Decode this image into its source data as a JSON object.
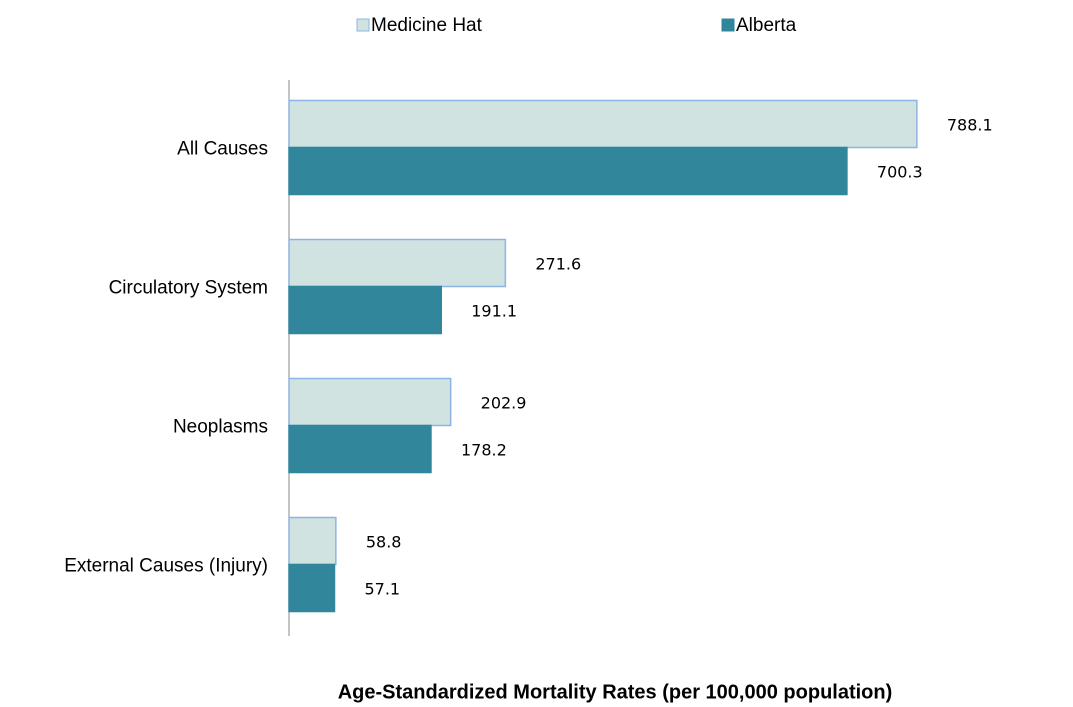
{
  "chart_data": {
    "type": "hbar",
    "xlabel": "Age-Standardized Mortality Rates (per 100,000 population)",
    "categories": [
      "All Causes",
      "Circulatory System",
      "Neoplasms",
      "External Causes (Injury)"
    ],
    "series": [
      {
        "name": "Medicine Hat",
        "color": "#d0e3e0",
        "edge": "#8eb4e3",
        "values": [
          788.1,
          271.6,
          202.9,
          58.8
        ]
      },
      {
        "name": "Alberta",
        "color": "#31869b",
        "edge": "#31869b",
        "values": [
          700.3,
          191.1,
          178.2,
          57.1
        ]
      }
    ],
    "xlim": [
      0,
      900
    ]
  }
}
